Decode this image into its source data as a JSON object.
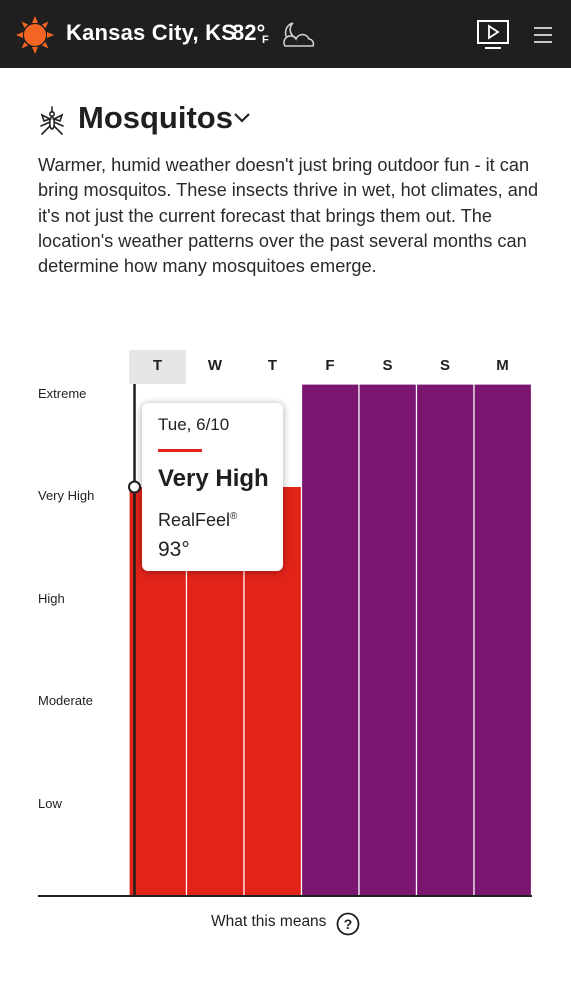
{
  "header": {
    "city": "Kansas City, KS",
    "temperature": "82°",
    "unit": "F",
    "sun_icon": "sun-icon",
    "condition_icon": "moon-cloud-icon",
    "video_icon": "video-play-icon",
    "menu_icon": "hamburger-menu-icon"
  },
  "section": {
    "title": "Mosquitos",
    "title_icon": "mosquito-icon",
    "dropdown_icon": "chevron-down-icon",
    "description": "Warmer, humid weather doesn't just bring outdoor fun - it can bring mosquitos. These insects thrive in wet, hot climates, and it's not just the current forecast that brings them out. The location's weather patterns over the past several months can determine how many mosquitoes emerge."
  },
  "chart_data": {
    "type": "bar",
    "categories": [
      "T",
      "W",
      "T",
      "F",
      "S",
      "S",
      "M"
    ],
    "values": [
      4,
      4,
      4,
      5,
      5,
      5,
      5
    ],
    "levels": [
      "Extreme",
      "Very High",
      "High",
      "Moderate",
      "Low"
    ],
    "ylim": [
      0,
      5
    ],
    "selected_index": 0,
    "colors": {
      "very_high": "#e2231a",
      "extreme": "#7b1670",
      "selected_header_bg": "#e6e6e6"
    }
  },
  "tooltip": {
    "date": "Tue, 6/10",
    "level": "Very High",
    "realfeel_label": "RealFeel",
    "realfeel_mark": "®",
    "realfeel_value": "93°"
  },
  "footer": {
    "what_this_means": "What this means",
    "help_icon": "question-circle-icon"
  }
}
